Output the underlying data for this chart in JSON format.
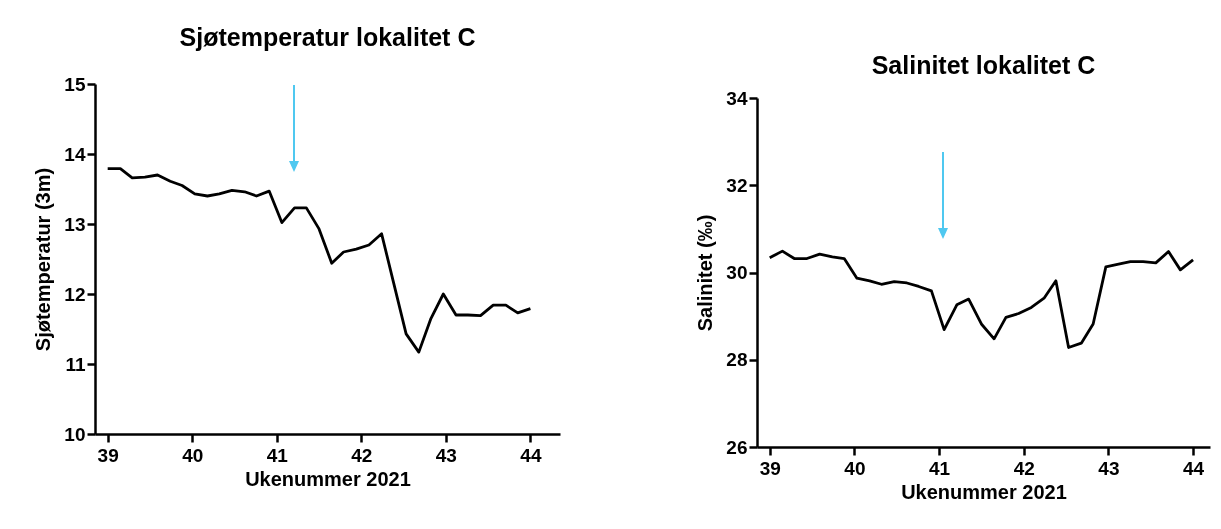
{
  "chart_data": [
    {
      "type": "line",
      "title": "Sjøtemperatur lokalitet C",
      "xlabel": "Ukenummer 2021",
      "ylabel": "Sjøtemperatur (3m)",
      "x": [
        39.0,
        39.15,
        39.29,
        39.44,
        39.59,
        39.74,
        39.88,
        40.03,
        40.18,
        40.32,
        40.47,
        40.62,
        40.76,
        40.91,
        41.06,
        41.21,
        41.35,
        41.5,
        41.65,
        41.79,
        41.94,
        42.09,
        42.24,
        42.38,
        42.53,
        42.68,
        42.82,
        42.97,
        43.12,
        43.26,
        43.41,
        43.56,
        43.71,
        43.85,
        44.0
      ],
      "series": [
        {
          "color": "#000000",
          "values": [
            13.79,
            13.79,
            13.66,
            13.67,
            13.7,
            13.61,
            13.55,
            13.43,
            13.4,
            13.43,
            13.48,
            13.46,
            13.4,
            13.47,
            13.02,
            13.23,
            13.23,
            12.93,
            12.44,
            12.6,
            12.64,
            12.7,
            12.86,
            12.17,
            11.43,
            11.17,
            11.64,
            12.0,
            11.7,
            11.7,
            11.69,
            11.84,
            11.84,
            11.73,
            11.79
          ]
        }
      ],
      "xlim": [
        38.85,
        44.35
      ],
      "ylim": [
        10,
        15
      ],
      "xticks": [
        39,
        40,
        41,
        42,
        43,
        44
      ],
      "yticks": [
        10,
        11,
        12,
        13,
        14,
        15
      ],
      "grid": false
    },
    {
      "type": "line",
      "title": "Salinitet lokalitet C",
      "xlabel": "Ukenummer 2021",
      "ylabel": "Salinitet (‰)",
      "x": [
        39.0,
        39.15,
        39.29,
        39.44,
        39.59,
        39.74,
        39.88,
        40.03,
        40.18,
        40.32,
        40.47,
        40.62,
        40.76,
        40.91,
        41.06,
        41.21,
        41.35,
        41.5,
        41.65,
        41.79,
        41.94,
        42.09,
        42.24,
        42.38,
        42.53,
        42.68,
        42.82,
        42.97,
        43.12,
        43.26,
        43.41,
        43.56,
        43.71,
        43.85,
        44.0
      ],
      "series": [
        {
          "color": "#000000",
          "values": [
            30.34,
            30.49,
            30.32,
            30.32,
            30.42,
            30.36,
            30.32,
            29.87,
            29.81,
            29.73,
            29.79,
            29.76,
            29.68,
            29.58,
            28.69,
            29.26,
            29.39,
            28.82,
            28.48,
            28.97,
            29.06,
            29.2,
            29.41,
            29.81,
            28.28,
            28.38,
            28.82,
            30.13,
            30.19,
            30.25,
            30.25,
            30.22,
            30.48,
            30.06,
            30.29
          ]
        }
      ],
      "xlim": [
        38.85,
        44.2
      ],
      "ylim": [
        26,
        34
      ],
      "xticks": [
        39,
        40,
        41,
        42,
        43,
        44
      ],
      "yticks": [
        26,
        28,
        30,
        32,
        34
      ],
      "grid": false
    }
  ]
}
